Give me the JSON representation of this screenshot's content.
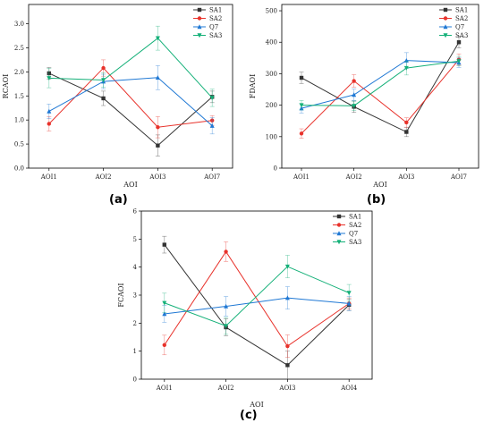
{
  "captions": [
    "(a)",
    "(b)",
    "(c)"
  ],
  "series_colors": {
    "SA1": "#333333",
    "SA2": "#e8322b",
    "Q7": "#1f78d4",
    "SA3": "#14b078"
  },
  "chart_data": [
    {
      "type": "line",
      "ylabel": "RCAOI",
      "xlabel": "AOI",
      "categories": [
        "AOI1",
        "AOI2",
        "AOI3",
        "AOI7"
      ],
      "ylim": [
        0,
        3.4
      ],
      "yticks": [
        0,
        0.5,
        1.0,
        1.5,
        2.0,
        2.5,
        3.0
      ],
      "ytick_labels": [
        "0.0",
        "0.5",
        "1.0",
        "1.5",
        "2.0",
        "2.5",
        "3.0"
      ],
      "legend": "top-right",
      "series": [
        {
          "name": "SA1",
          "values": [
            1.97,
            1.45,
            0.47,
            1.48
          ],
          "err": [
            0.12,
            0.15,
            0.22,
            0.12
          ]
        },
        {
          "name": "SA2",
          "values": [
            0.92,
            2.08,
            0.85,
            0.99
          ],
          "err": [
            0.15,
            0.17,
            0.22,
            0.1
          ]
        },
        {
          "name": "Q7",
          "values": [
            1.18,
            1.8,
            1.88,
            0.88
          ],
          "err": [
            0.15,
            0.15,
            0.25,
            0.17
          ]
        },
        {
          "name": "SA3",
          "values": [
            1.87,
            1.83,
            2.7,
            1.46
          ],
          "err": [
            0.2,
            0.15,
            0.25,
            0.18
          ]
        }
      ]
    },
    {
      "type": "line",
      "ylabel": "FDAOI",
      "xlabel": "AOI",
      "categories": [
        "AOI1",
        "AOI2",
        "AOI3",
        "AOI7"
      ],
      "ylim": [
        0,
        520
      ],
      "yticks": [
        0,
        100,
        200,
        300,
        400,
        500
      ],
      "ytick_labels": [
        "0",
        "100",
        "200",
        "300",
        "400",
        "500"
      ],
      "legend": "top-right",
      "series": [
        {
          "name": "SA1",
          "values": [
            287,
            195,
            115,
            400
          ],
          "err": [
            18,
            18,
            15,
            18
          ]
        },
        {
          "name": "SA2",
          "values": [
            110,
            277,
            145,
            345
          ],
          "err": [
            15,
            20,
            15,
            18
          ]
        },
        {
          "name": "Q7",
          "values": [
            190,
            233,
            342,
            335
          ],
          "err": [
            15,
            18,
            25,
            15
          ]
        },
        {
          "name": "SA3",
          "values": [
            200,
            198,
            318,
            340
          ],
          "err": [
            15,
            15,
            22,
            15
          ]
        }
      ]
    },
    {
      "type": "line",
      "ylabel": "FCAOI",
      "xlabel": "AOI",
      "categories": [
        "AOI1",
        "AOI2",
        "AOI3",
        "AOI4"
      ],
      "ylim": [
        0,
        6
      ],
      "yticks": [
        0,
        1,
        2,
        3,
        4,
        5,
        6
      ],
      "ytick_labels": [
        "0",
        "1",
        "2",
        "3",
        "4",
        "5",
        "6"
      ],
      "legend": "top-right",
      "series": [
        {
          "name": "SA1",
          "values": [
            4.8,
            1.85,
            0.5,
            2.65
          ],
          "err": [
            0.3,
            0.3,
            0.5,
            0.2
          ]
        },
        {
          "name": "SA2",
          "values": [
            1.22,
            4.55,
            1.18,
            2.7
          ],
          "err": [
            0.35,
            0.35,
            0.4,
            0.2
          ]
        },
        {
          "name": "Q7",
          "values": [
            2.33,
            2.6,
            2.9,
            2.7
          ],
          "err": [
            0.3,
            0.35,
            0.4,
            0.25
          ]
        },
        {
          "name": "SA3",
          "values": [
            2.72,
            1.9,
            4.02,
            3.08
          ],
          "err": [
            0.35,
            0.3,
            0.4,
            0.3
          ]
        }
      ]
    }
  ]
}
